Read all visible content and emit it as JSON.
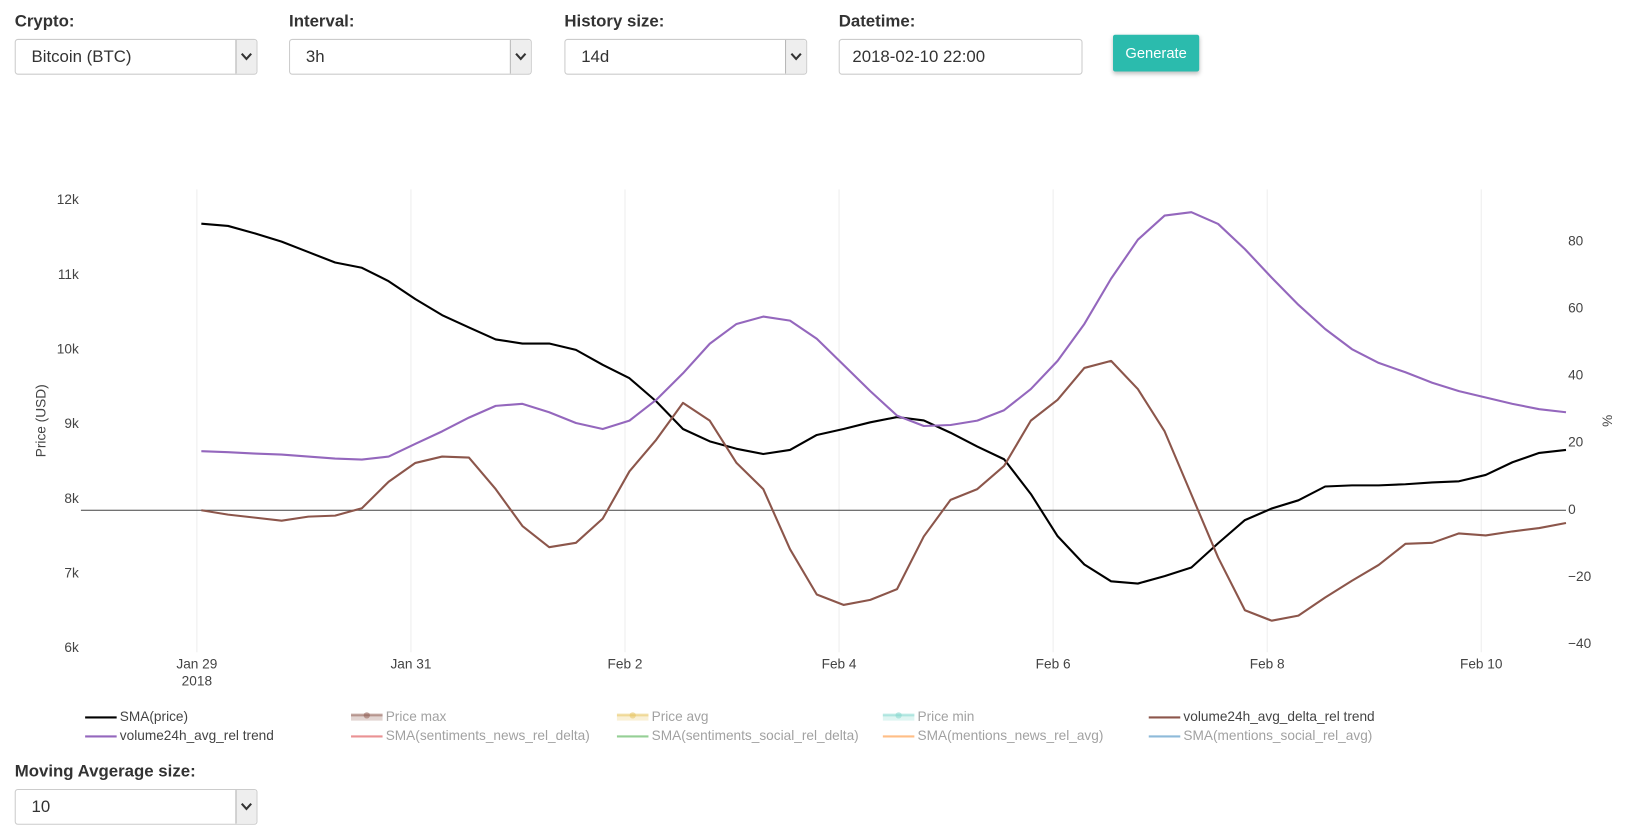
{
  "controls": {
    "crypto": {
      "label": "Crypto:",
      "value": "Bitcoin (BTC)"
    },
    "interval": {
      "label": "Interval:",
      "value": "3h"
    },
    "history_size": {
      "label": "History size:",
      "value": "14d"
    },
    "datetime": {
      "label": "Datetime:",
      "value": "2018-02-10 22:00"
    },
    "generate": "Generate",
    "moving_average": {
      "label": "Moving Avgerage size:",
      "value": "10"
    }
  },
  "chart_data": {
    "type": "line",
    "y_label": "Price (USD)",
    "y2_label": "%",
    "x": [
      "2018-01-29 01:00",
      "2018-01-29 07:00",
      "2018-01-29 13:00",
      "2018-01-29 19:00",
      "2018-01-30 01:00",
      "2018-01-30 07:00",
      "2018-01-30 13:00",
      "2018-01-30 19:00",
      "2018-01-31 01:00",
      "2018-01-31 07:00",
      "2018-01-31 13:00",
      "2018-01-31 19:00",
      "2018-02-01 01:00",
      "2018-02-01 07:00",
      "2018-02-01 13:00",
      "2018-02-01 19:00",
      "2018-02-02 01:00",
      "2018-02-02 07:00",
      "2018-02-02 13:00",
      "2018-02-02 19:00",
      "2018-02-03 01:00",
      "2018-02-03 07:00",
      "2018-02-03 13:00",
      "2018-02-03 19:00",
      "2018-02-04 01:00",
      "2018-02-04 07:00",
      "2018-02-04 13:00",
      "2018-02-04 19:00",
      "2018-02-05 01:00",
      "2018-02-05 07:00",
      "2018-02-05 13:00",
      "2018-02-05 19:00",
      "2018-02-06 01:00",
      "2018-02-06 07:00",
      "2018-02-06 13:00",
      "2018-02-06 19:00",
      "2018-02-07 01:00",
      "2018-02-07 07:00",
      "2018-02-07 13:00",
      "2018-02-07 19:00",
      "2018-02-08 01:00",
      "2018-02-08 07:00",
      "2018-02-08 13:00",
      "2018-02-08 19:00",
      "2018-02-09 01:00",
      "2018-02-09 07:00",
      "2018-02-09 13:00",
      "2018-02-09 19:00",
      "2018-02-10 01:00",
      "2018-02-10 07:00",
      "2018-02-10 13:00",
      "2018-02-10 19:00"
    ],
    "xlim": [
      "2018-01-27 22:00",
      "2018-02-10 19:00"
    ],
    "xticks": [
      {
        "value": "2018-01-29 00:00",
        "label": "Jan 29"
      },
      {
        "value": "2018-01-31 00:00",
        "label": "Jan 31"
      },
      {
        "value": "2018-02-02 00:00",
        "label": "Feb 2"
      },
      {
        "value": "2018-02-04 00:00",
        "label": "Feb 4"
      },
      {
        "value": "2018-02-06 00:00",
        "label": "Feb 6"
      },
      {
        "value": "2018-02-08 00:00",
        "label": "Feb 8"
      },
      {
        "value": "2018-02-10 00:00",
        "label": "Feb 10"
      }
    ],
    "x_year": "2018",
    "ylim": [
      5950,
      12150
    ],
    "yticks": [
      {
        "value": 6000,
        "label": "6k"
      },
      {
        "value": 7000,
        "label": "7k"
      },
      {
        "value": 8000,
        "label": "8k"
      },
      {
        "value": 9000,
        "label": "9k"
      },
      {
        "value": 10000,
        "label": "10k"
      },
      {
        "value": 11000,
        "label": "11k"
      },
      {
        "value": 12000,
        "label": "12k"
      }
    ],
    "y2lim": [
      -42.3,
      95.6
    ],
    "y2ticks": [
      {
        "value": -40,
        "label": "−40"
      },
      {
        "value": -20,
        "label": "−20"
      },
      0,
      20,
      40,
      60,
      80
    ],
    "xgrid": true,
    "y2_zeroline": true,
    "legend_position": "bottom",
    "series": [
      {
        "name": "SMA(price)",
        "color": "#000000",
        "axis": "y",
        "values": [
          11690,
          11660,
          11560,
          11450,
          11310,
          11170,
          11100,
          10920,
          10680,
          10465,
          10300,
          10140,
          10085,
          10085,
          10000,
          9800,
          9620,
          9310,
          8940,
          8775,
          8675,
          8605,
          8660,
          8860,
          8940,
          9030,
          9100,
          9055,
          8890,
          8705,
          8535,
          8070,
          7505,
          7125,
          6900,
          6870,
          6970,
          7085,
          7410,
          7720,
          7875,
          7985,
          8170,
          8185,
          8185,
          8200,
          8225,
          8240,
          8325,
          8495,
          8620,
          8660
        ]
      },
      {
        "name": "Price max",
        "color": "#8c564b",
        "visible": false,
        "style": "band"
      },
      {
        "name": "Price avg",
        "color": "#e6c25a",
        "visible": false,
        "style": "band"
      },
      {
        "name": "Price min",
        "color": "#7fd6cc",
        "visible": false,
        "style": "band"
      },
      {
        "name": "volume24h_avg_delta_rel trend",
        "color": "#8c564b",
        "axis": "y2",
        "values": [
          0,
          -1.3,
          -2.2,
          -3.1,
          -1.9,
          -1.6,
          0.6,
          8.5,
          14.1,
          16.0,
          15.7,
          6.3,
          -4.7,
          -11.0,
          -9.7,
          -2.5,
          11.6,
          21.0,
          32.0,
          26.7,
          14.1,
          6.3,
          -11.6,
          -25.1,
          -28.2,
          -26.7,
          -23.5,
          -7.8,
          3.1,
          6.3,
          13.2,
          26.7,
          32.9,
          42.4,
          44.5,
          36.1,
          23.5,
          4.7,
          -14.1,
          -29.8,
          -32.9,
          -31.4,
          -26.0,
          -21.0,
          -16.3,
          -10.0,
          -9.7,
          -6.9,
          -7.5,
          -6.3,
          -5.3,
          -3.8
        ]
      },
      {
        "name": "volume24h_avg_rel trend",
        "color": "#9467bd",
        "axis": "y2",
        "values": [
          17.6,
          17.3,
          16.9,
          16.6,
          16.0,
          15.4,
          15.1,
          16.0,
          19.8,
          23.5,
          27.6,
          31.1,
          31.7,
          29.2,
          26.0,
          24.2,
          26.7,
          32.9,
          40.8,
          49.6,
          55.5,
          57.7,
          56.5,
          51.1,
          43.3,
          35.5,
          28.2,
          25.1,
          25.4,
          26.7,
          29.8,
          36.1,
          44.5,
          55.5,
          69.0,
          80.6,
          87.8,
          88.8,
          85.3,
          77.8,
          69.3,
          61.2,
          54.0,
          48.0,
          43.9,
          41.1,
          38.0,
          35.5,
          33.6,
          31.7,
          30.1,
          29.2
        ]
      },
      {
        "name": "SMA(sentiments_news_rel_delta)",
        "color": "#d62728",
        "visible": false,
        "style": "line"
      },
      {
        "name": "SMA(sentiments_social_rel_delta)",
        "color": "#2ca02c",
        "visible": false,
        "style": "line"
      },
      {
        "name": "SMA(mentions_news_rel_avg)",
        "color": "#ff7f0e",
        "visible": false,
        "style": "line"
      },
      {
        "name": "SMA(mentions_social_rel_avg)",
        "color": "#1f77b4",
        "visible": false,
        "style": "line"
      }
    ]
  }
}
